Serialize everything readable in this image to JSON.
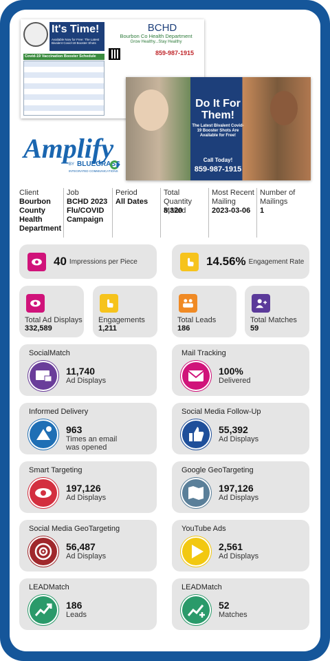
{
  "postcard_front": {
    "headline": "It's Time!",
    "subhead": "Available Now for Free: The Latest Bivalent Covid-19 Booster Shots",
    "table_title": "Covid-19 Vaccination Booster Schedule",
    "org": "BCHD",
    "org_name": "Bourbon Co Health Department",
    "tagline": "Grow Healthy...Stay Healthy",
    "phone": "859-987-1915"
  },
  "postcard_back": {
    "headline": "Do It For Them!",
    "body": "The Latest Bivalent Covid-19 Booster Shots Are Available for Free!",
    "cta": "Call Today!",
    "phone": "859-987-1915"
  },
  "logo": {
    "name": "Amplify",
    "by": "BY",
    "company": "BLUEGRASS",
    "tagline": "INTEGRATED COMMUNICATIONS"
  },
  "details": [
    {
      "label": "Client",
      "value": "Bourbon County Health Department"
    },
    {
      "label": "Job",
      "value": "BCHD 2023 Flu/COVID Campaign"
    },
    {
      "label": "Period",
      "value": "All Dates"
    },
    {
      "label": "Total Quantity Mailed",
      "value": "8,320"
    },
    {
      "label": "Most Recent Mailing",
      "value": "2023-03-06"
    },
    {
      "label": "Number of Mailings",
      "value": "1"
    }
  ],
  "highlights": [
    {
      "value": "40",
      "label": "Impressions per Piece",
      "color": "#d0137a"
    },
    {
      "value": "14.56%",
      "label": "Engagement Rate",
      "color": "#f6c31c"
    }
  ],
  "totals": [
    {
      "label": "Total Ad Displays",
      "value": "332,589",
      "color": "#d0137a"
    },
    {
      "label": "Engagements",
      "value": "1,211",
      "color": "#f6c31c"
    },
    {
      "label": "Total Leads",
      "value": "186",
      "color": "#f08a24"
    },
    {
      "label": "Total Matches",
      "value": "59",
      "color": "#5b3a9a"
    }
  ],
  "channels": [
    {
      "title": "SocialMatch",
      "value": "11,740",
      "label": "Ad Displays",
      "color": "#6a3d9a"
    },
    {
      "title": "Mail Tracking",
      "value": "100%",
      "label": "Delivered",
      "color": "#d0137a"
    },
    {
      "title": "Informed Delivery",
      "value": "963",
      "label": "Times an email was opened",
      "color": "#1f6fb5"
    },
    {
      "title": "Social Media Follow-Up",
      "value": "55,392",
      "label": "Ad Displays",
      "color": "#1f4f9a"
    },
    {
      "title": "Smart Targeting",
      "value": "197,126",
      "label": "Ad Displays",
      "color": "#d32f3f"
    },
    {
      "title": "Google GeoTargeting",
      "value": "197,126",
      "label": "Ad Displays",
      "color": "#5a7f99"
    },
    {
      "title": "Social Media GeoTargeting",
      "value": "56,487",
      "label": "Ad Displays",
      "color": "#a0282c"
    },
    {
      "title": "YouTube Ads",
      "value": "2,561",
      "label": "Ad Displays",
      "color": "#f2c811"
    },
    {
      "title": "LEADMatch",
      "value": "186",
      "label": "Leads",
      "color": "#2a9a6a"
    },
    {
      "title": "LEADMatch",
      "value": "52",
      "label": "Matches",
      "color": "#2a9a6a"
    }
  ]
}
